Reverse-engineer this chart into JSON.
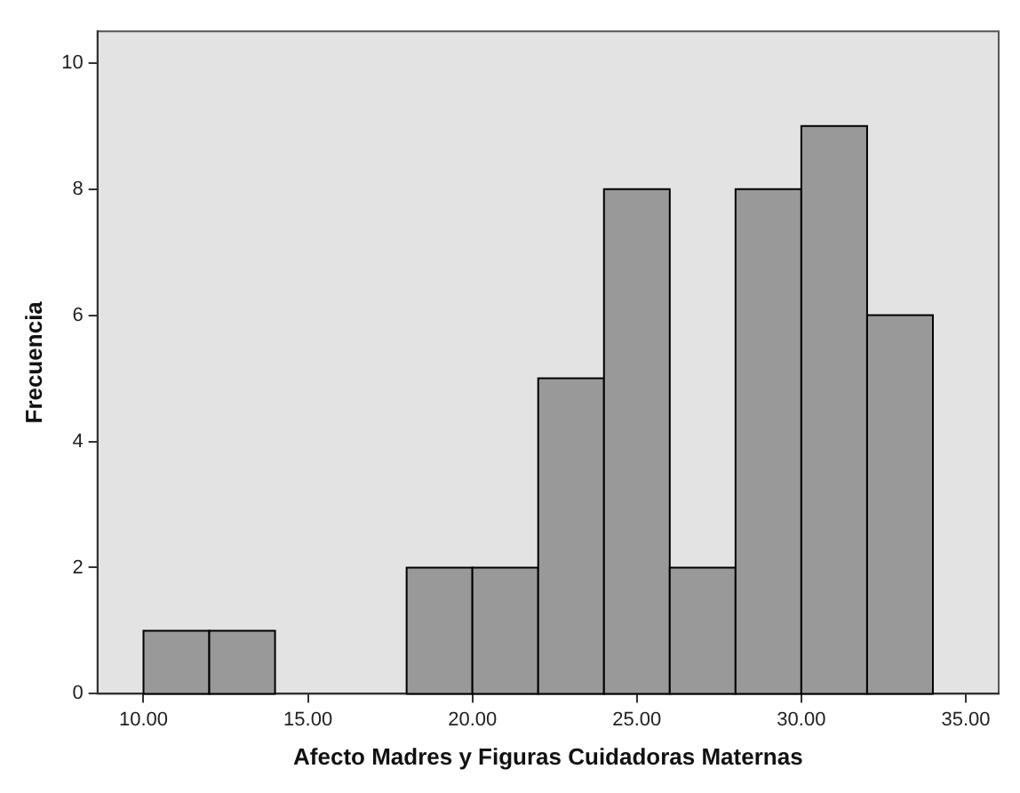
{
  "chart_data": {
    "type": "histogram",
    "xlabel": "Afecto Madres y Figuras Cuidadoras Maternas",
    "ylabel": "Frecuencia",
    "bins": [
      10,
      12,
      14,
      16,
      18,
      20,
      22,
      24,
      26,
      28,
      30,
      32,
      34
    ],
    "values": [
      1,
      1,
      0,
      0,
      2,
      2,
      5,
      8,
      2,
      8,
      9,
      6
    ],
    "color": "#999999",
    "xlim": [
      8.6,
      36
    ],
    "ylim": [
      0,
      10.5
    ],
    "xticks": [
      {
        "value": 10,
        "label": "10.00"
      },
      {
        "value": 15,
        "label": "15.00"
      },
      {
        "value": 20,
        "label": "20.00"
      },
      {
        "value": 25,
        "label": "25.00"
      },
      {
        "value": 30,
        "label": "30.00"
      },
      {
        "value": 35,
        "label": "35.00"
      }
    ],
    "yticks": [
      0,
      2,
      4,
      6,
      8,
      10
    ],
    "grid": false,
    "legend": false
  }
}
